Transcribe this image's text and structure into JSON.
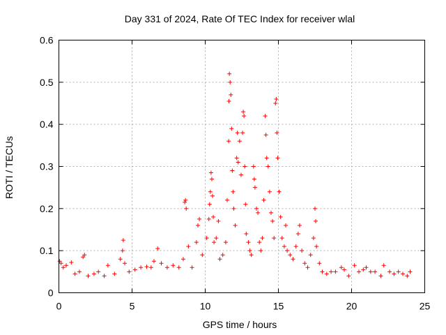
{
  "chart_data": {
    "type": "scatter",
    "title": "Day 331 of 2024, Rate Of TEC Index for receiver wlal",
    "xlabel": "GPS time / hours",
    "ylabel": "ROTI / TECUs",
    "xlim": [
      0,
      25
    ],
    "ylim": [
      0,
      0.6
    ],
    "xticks": [
      0,
      5,
      10,
      15,
      20,
      25
    ],
    "yticks": [
      0,
      0.1,
      0.2,
      0.3,
      0.4,
      0.5,
      0.6
    ],
    "xtick_labels": [
      "0",
      "5",
      "10",
      "15",
      "20",
      "25"
    ],
    "ytick_labels": [
      "0",
      "0.1",
      "0.2",
      "0.3",
      "0.4",
      "0.5",
      "0.6"
    ],
    "grid": true,
    "marker": "+",
    "color": "#ff0000",
    "series": [
      {
        "name": "ROTI",
        "points": [
          [
            0.05,
            0.075
          ],
          [
            0.15,
            0.07
          ],
          [
            0.3,
            0.06
          ],
          [
            0.5,
            0.065
          ],
          [
            0.85,
            0.072
          ],
          [
            1.1,
            0.045
          ],
          [
            1.4,
            0.05
          ],
          [
            1.65,
            0.085
          ],
          [
            1.75,
            0.09
          ],
          [
            2.0,
            0.04
          ],
          [
            2.4,
            0.045
          ],
          [
            2.7,
            0.05
          ],
          [
            3.1,
            0.04
          ],
          [
            3.35,
            0.065
          ],
          [
            3.8,
            0.045
          ],
          [
            4.2,
            0.08
          ],
          [
            4.35,
            0.1
          ],
          [
            4.4,
            0.125
          ],
          [
            4.5,
            0.07
          ],
          [
            4.8,
            0.05
          ],
          [
            5.2,
            0.055
          ],
          [
            5.6,
            0.06
          ],
          [
            6.0,
            0.062
          ],
          [
            6.3,
            0.06
          ],
          [
            6.5,
            0.075
          ],
          [
            6.75,
            0.105
          ],
          [
            7.0,
            0.07
          ],
          [
            7.4,
            0.06
          ],
          [
            7.8,
            0.065
          ],
          [
            8.2,
            0.06
          ],
          [
            8.5,
            0.08
          ],
          [
            8.6,
            0.215
          ],
          [
            8.65,
            0.22
          ],
          [
            8.7,
            0.2
          ],
          [
            8.85,
            0.11
          ],
          [
            9.1,
            0.06
          ],
          [
            9.4,
            0.12
          ],
          [
            9.5,
            0.16
          ],
          [
            9.6,
            0.175
          ],
          [
            9.8,
            0.09
          ],
          [
            10.1,
            0.13
          ],
          [
            10.25,
            0.175
          ],
          [
            10.3,
            0.21
          ],
          [
            10.35,
            0.24
          ],
          [
            10.4,
            0.285
          ],
          [
            10.45,
            0.27
          ],
          [
            10.5,
            0.23
          ],
          [
            10.55,
            0.18
          ],
          [
            10.6,
            0.12
          ],
          [
            10.75,
            0.13
          ],
          [
            10.9,
            0.17
          ],
          [
            11.0,
            0.08
          ],
          [
            11.2,
            0.09
          ],
          [
            11.4,
            0.12
          ],
          [
            11.5,
            0.22
          ],
          [
            11.6,
            0.36
          ],
          [
            11.62,
            0.455
          ],
          [
            11.65,
            0.52
          ],
          [
            11.7,
            0.5
          ],
          [
            11.75,
            0.47
          ],
          [
            11.8,
            0.39
          ],
          [
            11.85,
            0.29
          ],
          [
            11.9,
            0.24
          ],
          [
            11.95,
            0.2
          ],
          [
            12.05,
            0.16
          ],
          [
            12.15,
            0.32
          ],
          [
            12.2,
            0.38
          ],
          [
            12.25,
            0.31
          ],
          [
            12.35,
            0.36
          ],
          [
            12.45,
            0.28
          ],
          [
            12.55,
            0.38
          ],
          [
            12.6,
            0.43
          ],
          [
            12.65,
            0.42
          ],
          [
            12.7,
            0.3
          ],
          [
            12.75,
            0.21
          ],
          [
            12.8,
            0.14
          ],
          [
            12.95,
            0.12
          ],
          [
            13.05,
            0.1
          ],
          [
            13.15,
            0.09
          ],
          [
            13.3,
            0.3
          ],
          [
            13.35,
            0.27
          ],
          [
            13.4,
            0.25
          ],
          [
            13.5,
            0.2
          ],
          [
            13.6,
            0.19
          ],
          [
            13.7,
            0.12
          ],
          [
            13.8,
            0.1
          ],
          [
            13.9,
            0.13
          ],
          [
            14.0,
            0.22
          ],
          [
            14.1,
            0.42
          ],
          [
            14.15,
            0.375
          ],
          [
            14.2,
            0.32
          ],
          [
            14.3,
            0.3
          ],
          [
            14.4,
            0.24
          ],
          [
            14.5,
            0.19
          ],
          [
            14.6,
            0.17
          ],
          [
            14.7,
            0.13
          ],
          [
            14.8,
            0.45
          ],
          [
            14.85,
            0.46
          ],
          [
            14.9,
            0.38
          ],
          [
            14.95,
            0.32
          ],
          [
            15.05,
            0.24
          ],
          [
            15.15,
            0.18
          ],
          [
            15.25,
            0.13
          ],
          [
            15.4,
            0.11
          ],
          [
            15.5,
            0.16
          ],
          [
            15.6,
            0.1
          ],
          [
            15.8,
            0.09
          ],
          [
            16.0,
            0.08
          ],
          [
            16.2,
            0.11
          ],
          [
            16.35,
            0.14
          ],
          [
            16.45,
            0.16
          ],
          [
            16.6,
            0.1
          ],
          [
            16.8,
            0.07
          ],
          [
            17.0,
            0.06
          ],
          [
            17.2,
            0.09
          ],
          [
            17.4,
            0.13
          ],
          [
            17.5,
            0.2
          ],
          [
            17.55,
            0.17
          ],
          [
            17.6,
            0.11
          ],
          [
            17.8,
            0.07
          ],
          [
            18.0,
            0.05
          ],
          [
            18.3,
            0.045
          ],
          [
            18.6,
            0.05
          ],
          [
            18.9,
            0.05
          ],
          [
            19.3,
            0.06
          ],
          [
            19.5,
            0.055
          ],
          [
            19.8,
            0.04
          ],
          [
            20.2,
            0.065
          ],
          [
            20.5,
            0.05
          ],
          [
            20.8,
            0.055
          ],
          [
            21.0,
            0.06
          ],
          [
            21.3,
            0.05
          ],
          [
            21.6,
            0.05
          ],
          [
            22.0,
            0.04
          ],
          [
            22.2,
            0.065
          ],
          [
            22.6,
            0.05
          ],
          [
            22.9,
            0.045
          ],
          [
            23.2,
            0.05
          ],
          [
            23.5,
            0.045
          ],
          [
            23.8,
            0.04
          ],
          [
            24.0,
            0.05
          ]
        ]
      }
    ]
  }
}
